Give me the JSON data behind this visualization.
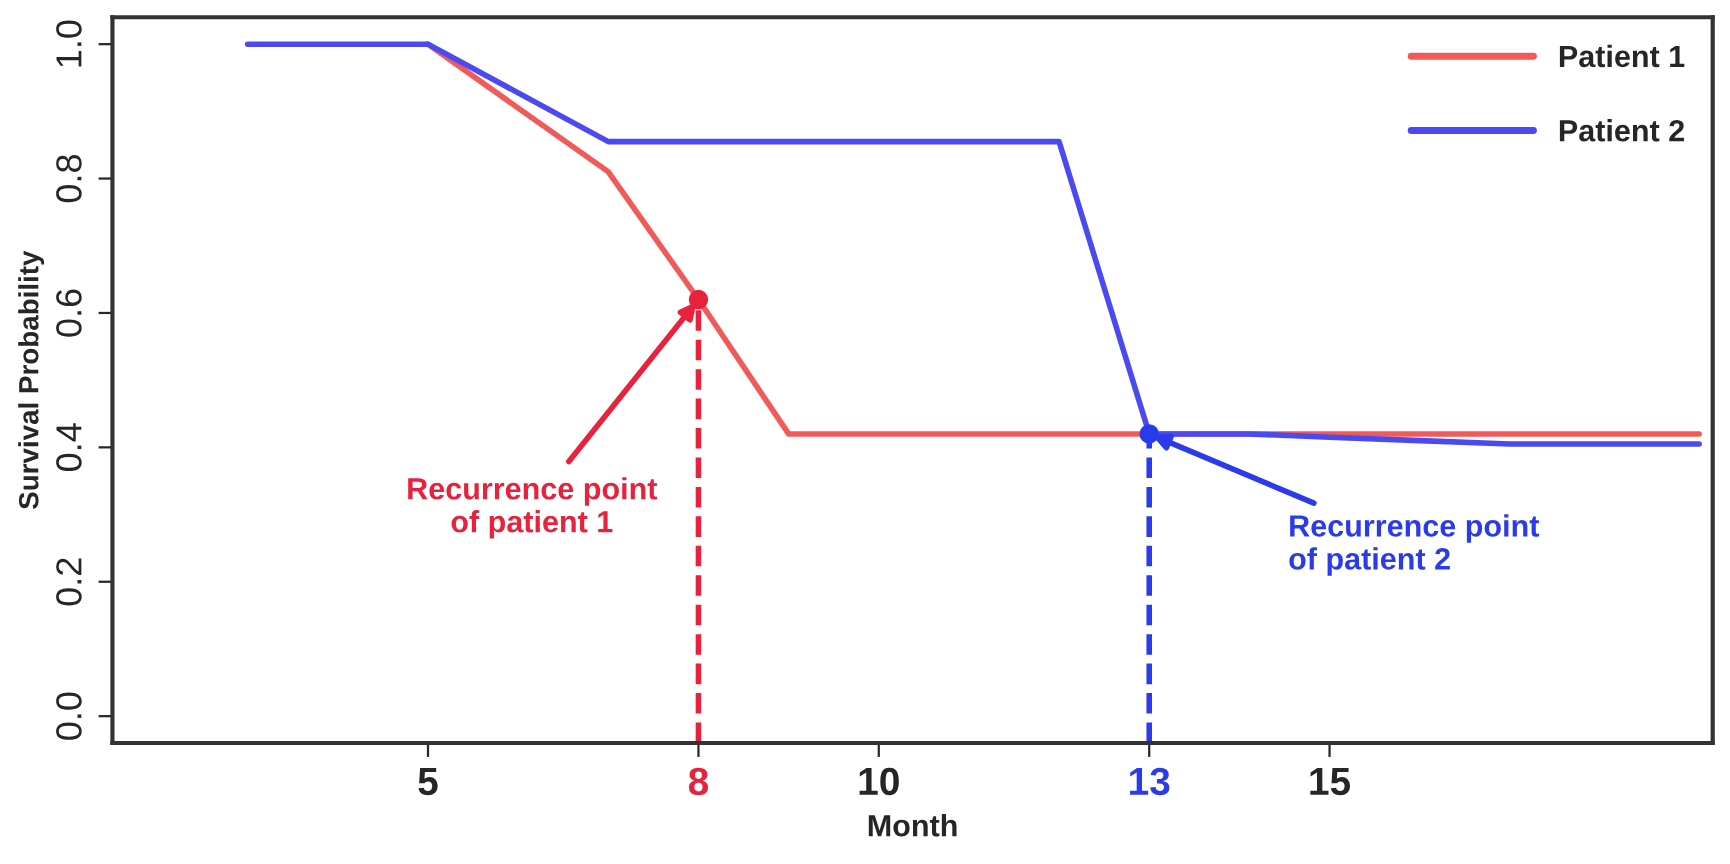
{
  "chart_data": {
    "type": "line",
    "xlabel": "Month",
    "ylabel": "Survival Probability",
    "xlim": [
      1.5,
      19.25
    ],
    "ylim": [
      -0.04,
      1.04
    ],
    "xticks": [
      5,
      8,
      10,
      13,
      15
    ],
    "yticks": [
      {
        "value": 0,
        "label": "0.0"
      },
      0.2,
      0.4,
      0.6,
      0.8,
      {
        "value": 1,
        "label": "1.0"
      }
    ],
    "series": [
      {
        "name": "Patient 1",
        "color": "#f25a5a",
        "x": [
          5,
          7,
          8,
          9,
          19.1
        ],
        "values": [
          1.0,
          0.81,
          0.62,
          0.42,
          0.42
        ]
      },
      {
        "name": "Patient 2",
        "color": "#4a4af0",
        "x": [
          3,
          5,
          7,
          12,
          13,
          14.1,
          15,
          16,
          17,
          19.1
        ],
        "values": [
          1.0,
          1.0,
          0.855,
          0.855,
          0.42,
          0.42,
          0.415,
          0.41,
          0.405,
          0.405
        ]
      }
    ],
    "ref_lines": [
      {
        "axis": "x",
        "value": 8,
        "color": "#e8223c",
        "line_style": "dashed"
      },
      {
        "axis": "x",
        "value": 13,
        "color": "#2a3bea",
        "line_style": "dashed"
      }
    ],
    "annotations": [
      {
        "text": "Recurrence point\nof patient 1",
        "x": 8,
        "y": 0.62
      },
      {
        "text": "Recurrence point\nof patient 2",
        "x": 13,
        "y": 0.42
      }
    ],
    "legend": "top right",
    "grid": false,
    "marker": "none",
    "line_style": "solid"
  }
}
